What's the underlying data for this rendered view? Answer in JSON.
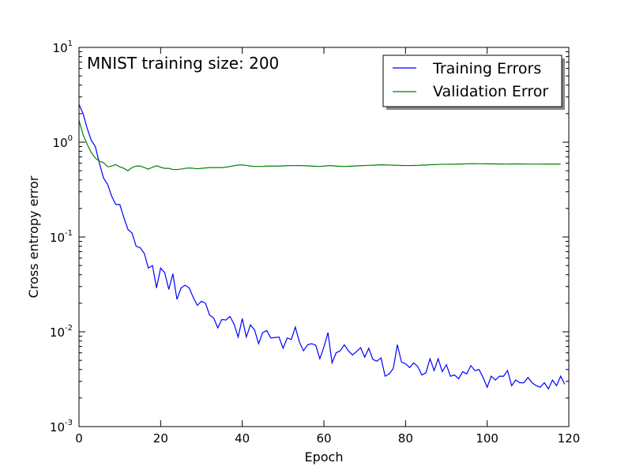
{
  "chart_data": {
    "type": "line",
    "title": "",
    "annotation": "MNIST training size: 200",
    "xlabel": "Epoch",
    "ylabel": "Cross entropy error",
    "xlim": [
      0,
      120
    ],
    "ylim": [
      0.001,
      10
    ],
    "yscale": "log",
    "grid": false,
    "legend_position": "top-right",
    "xticks": [
      0,
      20,
      40,
      60,
      80,
      100,
      120
    ],
    "yticks": [
      {
        "value": 0.001,
        "base": "10",
        "exp": "-3"
      },
      {
        "value": 0.01,
        "base": "10",
        "exp": "-2"
      },
      {
        "value": 0.1,
        "base": "10",
        "exp": "-1"
      },
      {
        "value": 1,
        "base": "10",
        "exp": "0"
      },
      {
        "value": 10,
        "base": "10",
        "exp": "1"
      }
    ],
    "series": [
      {
        "name": "Training Errors",
        "color": "#0000ff",
        "x": [
          0,
          1,
          2,
          3,
          4,
          5,
          6,
          7,
          8,
          9,
          10,
          11,
          12,
          13,
          14,
          15,
          16,
          17,
          18,
          19,
          20,
          21,
          22,
          23,
          24,
          25,
          26,
          27,
          28,
          29,
          30,
          31,
          32,
          33,
          34,
          35,
          36,
          37,
          38,
          39,
          40,
          41,
          42,
          43,
          44,
          45,
          46,
          47,
          48,
          49,
          50,
          51,
          52,
          53,
          54,
          55,
          56,
          57,
          58,
          59,
          60,
          61,
          62,
          63,
          64,
          65,
          66,
          67,
          68,
          69,
          70,
          71,
          72,
          73,
          74,
          75,
          76,
          77,
          78,
          79,
          80,
          81,
          82,
          83,
          84,
          85,
          86,
          87,
          88,
          89,
          90,
          91,
          92,
          93,
          94,
          95,
          96,
          97,
          98,
          99,
          100,
          101,
          102,
          103,
          104,
          105,
          106,
          107,
          108,
          109,
          110,
          111,
          112,
          113,
          114,
          115,
          116,
          117,
          118,
          119
        ],
        "values": [
          2.5,
          2.0,
          1.4,
          1.05,
          0.9,
          0.6,
          0.42,
          0.36,
          0.27,
          0.22,
          0.22,
          0.16,
          0.12,
          0.11,
          0.08,
          0.077,
          0.067,
          0.047,
          0.05,
          0.029,
          0.047,
          0.042,
          0.028,
          0.041,
          0.022,
          0.029,
          0.031,
          0.029,
          0.023,
          0.019,
          0.021,
          0.02,
          0.015,
          0.014,
          0.011,
          0.0135,
          0.0133,
          0.0145,
          0.012,
          0.0088,
          0.0138,
          0.0088,
          0.0118,
          0.0105,
          0.0075,
          0.0098,
          0.0103,
          0.0086,
          0.0087,
          0.0088,
          0.0067,
          0.0086,
          0.0083,
          0.0112,
          0.0078,
          0.0063,
          0.0073,
          0.0075,
          0.0072,
          0.0052,
          0.0069,
          0.0098,
          0.0047,
          0.006,
          0.0063,
          0.0073,
          0.0063,
          0.0057,
          0.0062,
          0.0068,
          0.0054,
          0.0067,
          0.0051,
          0.0049,
          0.0053,
          0.0034,
          0.0036,
          0.0041,
          0.0073,
          0.0048,
          0.0046,
          0.0042,
          0.0047,
          0.0043,
          0.0035,
          0.0037,
          0.0052,
          0.0039,
          0.0052,
          0.0038,
          0.0045,
          0.0034,
          0.0035,
          0.0032,
          0.0038,
          0.0036,
          0.0044,
          0.0039,
          0.004,
          0.0033,
          0.0026,
          0.0034,
          0.0031,
          0.0034,
          0.0034,
          0.0039,
          0.0027,
          0.0031,
          0.0029,
          0.0029,
          0.0033,
          0.0029,
          0.0027,
          0.0026,
          0.0029,
          0.0025,
          0.0031,
          0.0027,
          0.0034,
          0.0028
        ]
      },
      {
        "name": "Validation Error",
        "color": "#008000",
        "x": [
          0,
          1,
          2,
          3,
          4,
          5,
          6,
          7,
          8,
          9,
          10,
          11,
          12,
          13,
          14,
          15,
          16,
          17,
          18,
          19,
          20,
          21,
          22,
          23,
          24,
          25,
          26,
          27,
          28,
          29,
          30,
          31,
          32,
          33,
          34,
          35,
          36,
          37,
          38,
          39,
          40,
          41,
          42,
          43,
          44,
          45,
          46,
          47,
          48,
          49,
          50,
          51,
          52,
          53,
          54,
          55,
          56,
          57,
          58,
          59,
          60,
          61,
          62,
          63,
          64,
          65,
          66,
          67,
          68,
          69,
          70,
          71,
          72,
          73,
          74,
          75,
          76,
          77,
          78,
          79,
          80,
          81,
          82,
          83,
          84,
          85,
          86,
          87,
          88,
          89,
          90,
          91,
          92,
          93,
          94,
          95,
          96,
          97,
          98,
          99,
          100,
          101,
          102,
          103,
          104,
          105,
          106,
          107,
          108,
          109,
          110,
          111,
          112,
          113,
          114,
          115,
          116,
          117,
          118
        ],
        "values": [
          1.7,
          1.2,
          0.95,
          0.78,
          0.68,
          0.63,
          0.61,
          0.55,
          0.56,
          0.58,
          0.55,
          0.53,
          0.5,
          0.54,
          0.56,
          0.56,
          0.54,
          0.52,
          0.545,
          0.565,
          0.545,
          0.53,
          0.53,
          0.515,
          0.515,
          0.52,
          0.53,
          0.535,
          0.53,
          0.525,
          0.53,
          0.535,
          0.54,
          0.54,
          0.54,
          0.54,
          0.545,
          0.555,
          0.565,
          0.575,
          0.575,
          0.57,
          0.56,
          0.555,
          0.555,
          0.555,
          0.56,
          0.56,
          0.56,
          0.56,
          0.562,
          0.565,
          0.567,
          0.567,
          0.566,
          0.565,
          0.562,
          0.56,
          0.557,
          0.555,
          0.56,
          0.565,
          0.565,
          0.56,
          0.557,
          0.555,
          0.557,
          0.56,
          0.562,
          0.565,
          0.567,
          0.57,
          0.572,
          0.575,
          0.577,
          0.576,
          0.574,
          0.572,
          0.57,
          0.568,
          0.567,
          0.567,
          0.568,
          0.57,
          0.573,
          0.575,
          0.578,
          0.58,
          0.582,
          0.585,
          0.585,
          0.586,
          0.586,
          0.587,
          0.589,
          0.592,
          0.593,
          0.593,
          0.592,
          0.592,
          0.591,
          0.59,
          0.59,
          0.589,
          0.588,
          0.588,
          0.589,
          0.59,
          0.59,
          0.589,
          0.588,
          0.588,
          0.588,
          0.588,
          0.587,
          0.587,
          0.587,
          0.587,
          0.587
        ]
      }
    ]
  }
}
